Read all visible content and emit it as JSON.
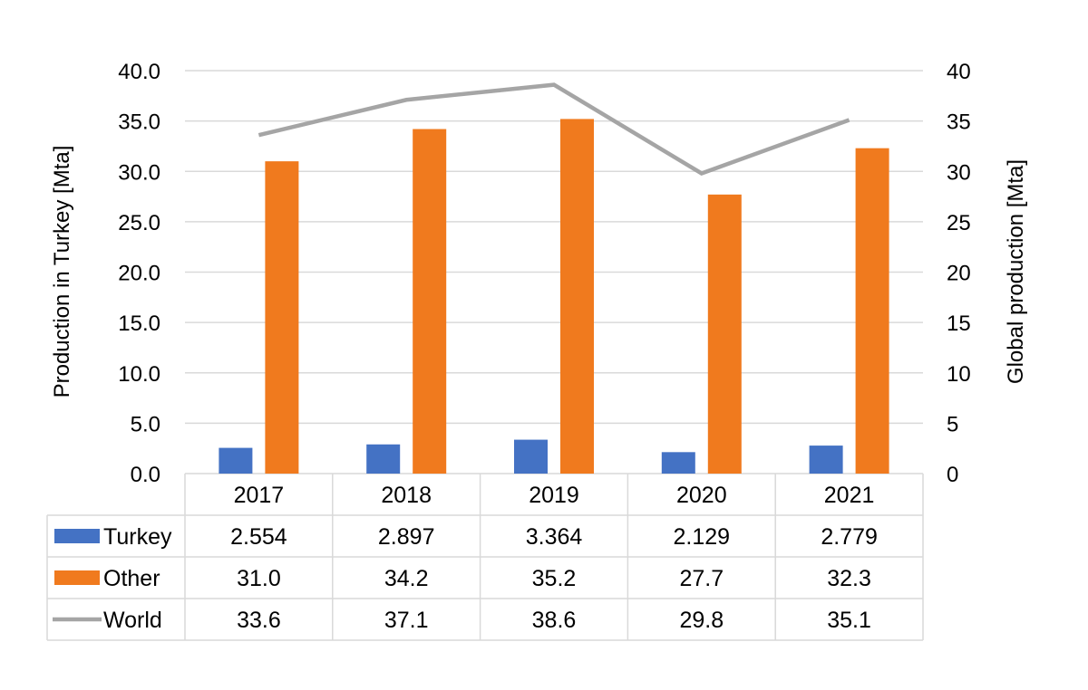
{
  "chart_data": {
    "type": "bar",
    "categories": [
      "2017",
      "2018",
      "2019",
      "2020",
      "2021"
    ],
    "series": [
      {
        "name": "Turkey",
        "kind": "bar",
        "axis": "left",
        "color": "#4472C4",
        "values": [
          2.554,
          2.897,
          3.364,
          2.129,
          2.779
        ],
        "labels": [
          "2.554",
          "2.897",
          "3.364",
          "2.129",
          "2.779"
        ]
      },
      {
        "name": "Other",
        "kind": "bar",
        "axis": "left",
        "color": "#F07A1E",
        "values": [
          31.0,
          34.2,
          35.2,
          27.7,
          32.3
        ],
        "labels": [
          "31.0",
          "34.2",
          "35.2",
          "27.7",
          "32.3"
        ]
      },
      {
        "name": "World",
        "kind": "line",
        "axis": "right",
        "color": "#A5A5A5",
        "values": [
          33.6,
          37.1,
          38.6,
          29.8,
          35.1
        ],
        "labels": [
          "33.6",
          "37.1",
          "38.6",
          "29.8",
          "35.1"
        ]
      }
    ],
    "ylabel": "Production in Turkey [Mta]",
    "y2label": "Global production [Mta]",
    "ylim": [
      0,
      40
    ],
    "y2lim": [
      0,
      40
    ],
    "yticks": [
      "0.0",
      "5.0",
      "10.0",
      "15.0",
      "20.0",
      "25.0",
      "30.0",
      "35.0",
      "40.0"
    ],
    "y2ticks": [
      "0",
      "5",
      "10",
      "15",
      "20",
      "25",
      "30",
      "35",
      "40"
    ],
    "grid": true,
    "data_table": true
  }
}
